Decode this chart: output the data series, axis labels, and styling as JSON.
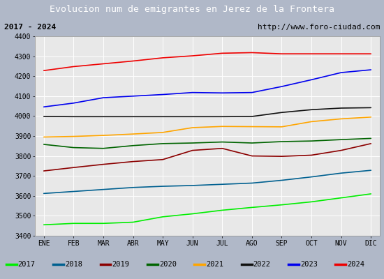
{
  "title": "Evolucion num de emigrantes en Jerez de la Frontera",
  "subtitle_left": "2017 - 2024",
  "subtitle_right": "http://www.foro-ciudad.com",
  "title_bg_color": "#4d8bc9",
  "title_text_color": "#ffffff",
  "subtitle_bg_color": "#f0f0f0",
  "plot_bg_color": "#e8e8e8",
  "outer_bg_color": "#b0b8c8",
  "months": [
    "ENE",
    "FEB",
    "MAR",
    "ABR",
    "MAY",
    "JUN",
    "JUL",
    "AGO",
    "SEP",
    "OCT",
    "NOV",
    "DIC"
  ],
  "ylim": [
    3400,
    4400
  ],
  "yticks": [
    3400,
    3500,
    3600,
    3700,
    3800,
    3900,
    4000,
    4100,
    4200,
    4300,
    4400
  ],
  "series": {
    "2017": {
      "color": "#00ee00",
      "data": [
        3455,
        3462,
        3462,
        3468,
        3495,
        3510,
        3528,
        3542,
        3555,
        3570,
        3590,
        3610
      ]
    },
    "2018": {
      "color": "#006090",
      "data": [
        3612,
        3622,
        3632,
        3642,
        3648,
        3652,
        3658,
        3664,
        3678,
        3695,
        3714,
        3728
      ]
    },
    "2019": {
      "color": "#8b0000",
      "data": [
        3725,
        3742,
        3758,
        3772,
        3782,
        3828,
        3838,
        3800,
        3798,
        3804,
        3828,
        3862
      ]
    },
    "2020": {
      "color": "#006400",
      "data": [
        3858,
        3842,
        3838,
        3852,
        3862,
        3865,
        3870,
        3865,
        3872,
        3875,
        3882,
        3888
      ]
    },
    "2021": {
      "color": "#ffa500",
      "data": [
        3895,
        3898,
        3903,
        3910,
        3918,
        3942,
        3948,
        3947,
        3946,
        3972,
        3986,
        3995
      ]
    },
    "2022": {
      "color": "#101010",
      "data": [
        3998,
        3997,
        3997,
        3997,
        3997,
        3997,
        3997,
        3998,
        4018,
        4032,
        4040,
        4042
      ]
    },
    "2023": {
      "color": "#0000ee",
      "data": [
        4046,
        4065,
        4092,
        4100,
        4108,
        4118,
        4116,
        4118,
        4148,
        4182,
        4218,
        4232
      ]
    },
    "2024": {
      "color": "#ee0000",
      "data": [
        4228,
        4248,
        4262,
        4276,
        4292,
        4302,
        4315,
        4318,
        4312,
        4312,
        4312,
        4312
      ]
    }
  },
  "legend_order": [
    "2017",
    "2018",
    "2019",
    "2020",
    "2021",
    "2022",
    "2023",
    "2024"
  ]
}
